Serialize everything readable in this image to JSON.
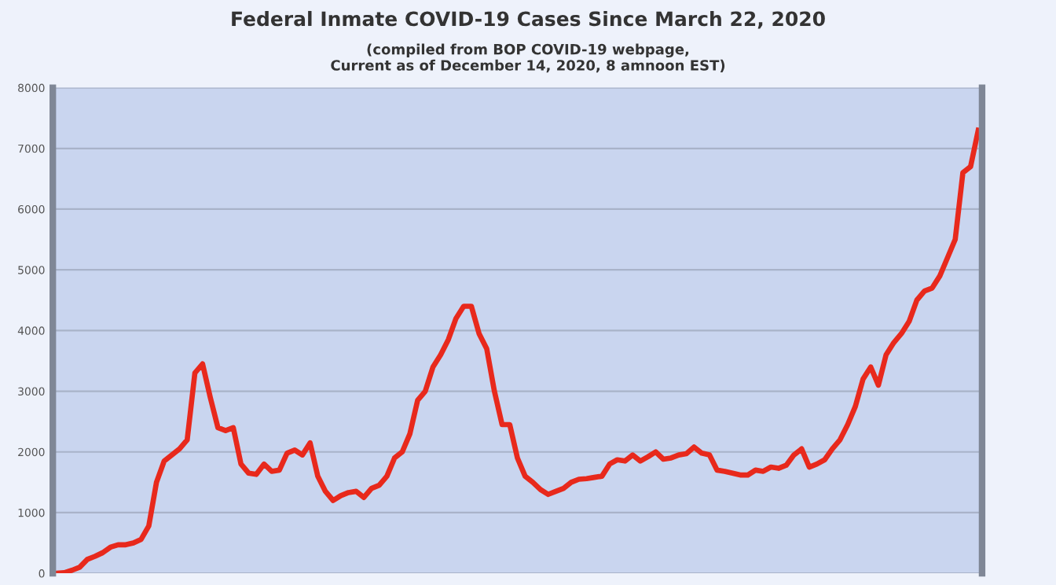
{
  "chart_data": {
    "type": "line",
    "title": "Federal Inmate COVID-19 Cases Since March 22, 2020",
    "subtitle": "(compiled from BOP COVID-19 webpage,\nCurrent as of December 14, 2020, 8 amnoon EST)",
    "categories": [
      null,
      null,
      null,
      null,
      null,
      null,
      null,
      null,
      null,
      null,
      null,
      null,
      null,
      null,
      null,
      null,
      null,
      null,
      null,
      null,
      null,
      null,
      null,
      null,
      null,
      null,
      null,
      null,
      null,
      null,
      null,
      null,
      null,
      null,
      null,
      null,
      null,
      null,
      null,
      null,
      null,
      null,
      null,
      null,
      null,
      null,
      null,
      null,
      null,
      null,
      null,
      null,
      null,
      null,
      null,
      null,
      null,
      null,
      null,
      null,
      null,
      null,
      null,
      null,
      null,
      null,
      null,
      null,
      null,
      null,
      null,
      null,
      null,
      null,
      null,
      null,
      null,
      null,
      null,
      null,
      null,
      null,
      null,
      null,
      null,
      null,
      null,
      null,
      null,
      null,
      null,
      null,
      null,
      null,
      null,
      null,
      null,
      null,
      null,
      null,
      null,
      null,
      null,
      null,
      null,
      null,
      null,
      null,
      null,
      null,
      null,
      null,
      null,
      null,
      null,
      null,
      null,
      null,
      null,
      null,
      null
    ],
    "series": [
      {
        "color": "#e8291c",
        "values": [
          0,
          10,
          50,
          100,
          230,
          280,
          340,
          430,
          470,
          470,
          500,
          560,
          780,
          1500,
          1850,
          1950,
          2050,
          2200,
          3300,
          3450,
          2900,
          2400,
          2350,
          2400,
          1800,
          1650,
          1630,
          1800,
          1680,
          1700,
          1980,
          2030,
          1950,
          2150,
          1600,
          1350,
          1200,
          1280,
          1330,
          1350,
          1250,
          1400,
          1450,
          1600,
          1900,
          2000,
          2300,
          2850,
          3000,
          3400,
          3600,
          3850,
          4200,
          4400,
          4400,
          3950,
          3700,
          3000,
          2450,
          2450,
          1900,
          1600,
          1500,
          1380,
          1300,
          1350,
          1400,
          1500,
          1550,
          1560,
          1580,
          1600,
          1800,
          1870,
          1850,
          1950,
          1850,
          1920,
          2000,
          1880,
          1900,
          1950,
          1970,
          2080,
          1980,
          1950,
          1700,
          1680,
          1650,
          1620,
          1620,
          1700,
          1680,
          1750,
          1730,
          1780,
          1950,
          2050,
          1750,
          1800,
          1870,
          2050,
          2200,
          2450,
          2750,
          3200,
          3400,
          3100,
          3600,
          3800,
          3950,
          4150,
          4500,
          4650,
          4700,
          4900,
          5200,
          5500,
          6600,
          6700,
          7300
        ]
      }
    ],
    "ylim": [
      0,
      8000
    ],
    "yticks": [
      0,
      1000,
      2000,
      3000,
      4000,
      5000,
      6000,
      7000,
      8000
    ],
    "grid": "y",
    "legend": false,
    "marker": "none",
    "line_style": "solid"
  }
}
